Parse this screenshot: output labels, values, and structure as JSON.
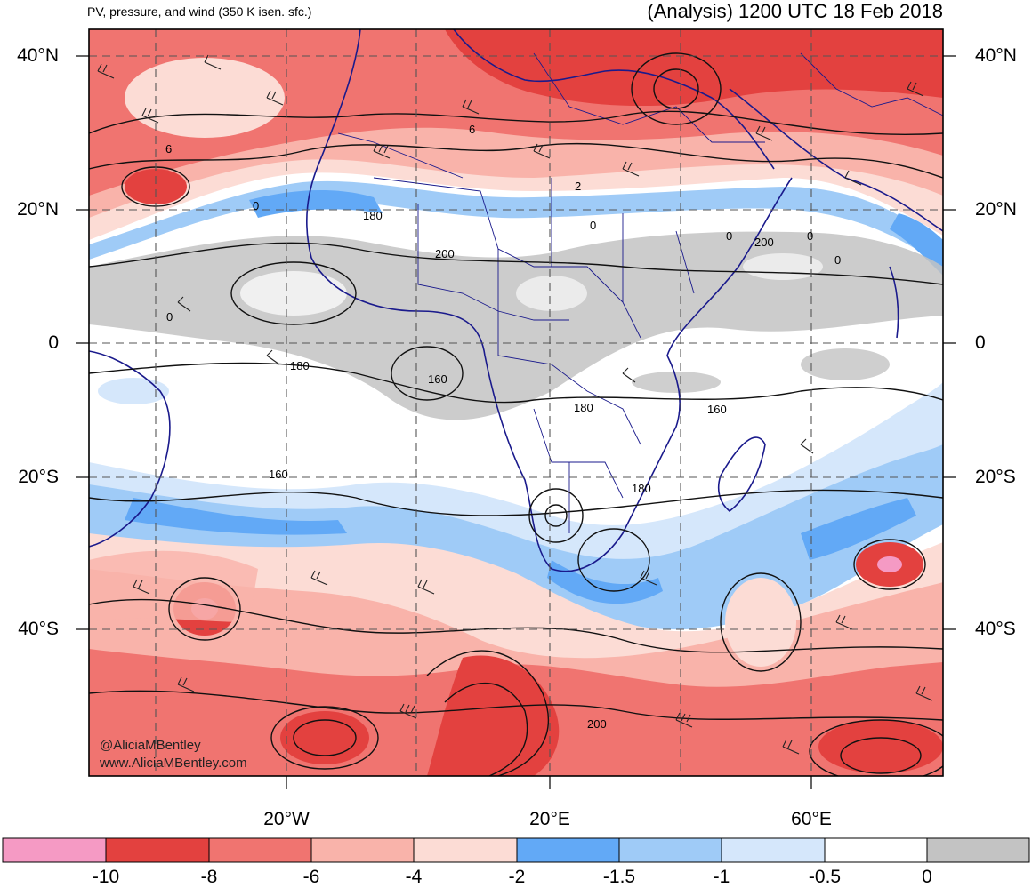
{
  "header": {
    "left_title": "PV, pressure, and wind (350 K isen. sfc.)",
    "right_title": "(Analysis) 1200 UTC 18 Feb 2018"
  },
  "axes": {
    "lat_labels": [
      "40°N",
      "20°N",
      "0",
      "20°S",
      "40°S"
    ],
    "lon_labels": [
      "20°W",
      "20°E",
      "60°E"
    ]
  },
  "contour_labels": [
    "6",
    "6",
    "0",
    "180",
    "200",
    "2",
    "0",
    "0",
    "0",
    "200",
    "0",
    "0",
    "180",
    "160",
    "180",
    "160",
    "160",
    "180",
    "200"
  ],
  "credits": {
    "handle": "@AliciaMBentley",
    "website": "www.AliciaMBentley.com"
  },
  "colorbar": {
    "labels": [
      "-10",
      "-8",
      "-6",
      "-4",
      "-2",
      "-1.5",
      "-1",
      "-0.5",
      "0"
    ],
    "colors": [
      "#f59ac4",
      "#e3413f",
      "#f07470",
      "#f9b3aa",
      "#fcdcd5",
      "#62a9f6",
      "#9fcbf7",
      "#d5e7fb",
      "#ffffff",
      "#c3c3c3"
    ]
  }
}
